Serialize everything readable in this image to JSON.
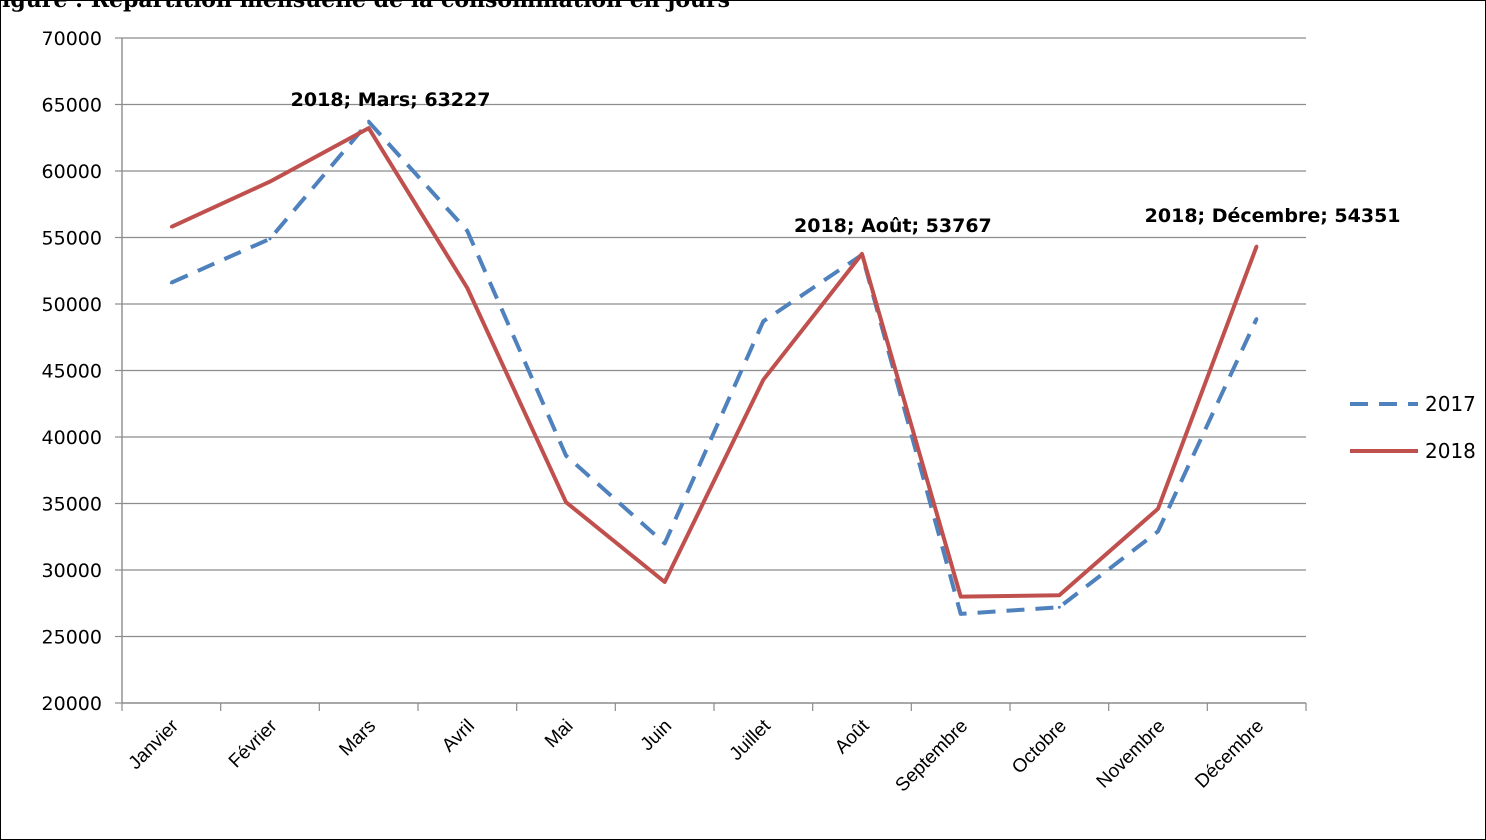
{
  "figure": {
    "cut_title": "igure : Répartition mensuelle de la consommation en jours"
  },
  "chart_data": {
    "type": "line",
    "categories": [
      "Janvier",
      "Février",
      "Mars",
      "Avril",
      "Mai",
      "Juin",
      "Juillet",
      "Août",
      "Septembre",
      "Octobre",
      "Novembre",
      "Décembre"
    ],
    "series": [
      {
        "name": "2017",
        "color": "#4F81BD",
        "dash": "dashed",
        "values": [
          51600,
          54900,
          63700,
          55500,
          38600,
          32000,
          48700,
          53700,
          26700,
          27200,
          32900,
          48900
        ]
      },
      {
        "name": "2018",
        "color": "#C0504D",
        "dash": "solid",
        "values": [
          55800,
          59200,
          63227,
          51200,
          35100,
          29100,
          44300,
          53767,
          28000,
          28100,
          34600,
          54351
        ]
      }
    ],
    "data_labels": [
      {
        "series": "2018",
        "category": "Mars",
        "text": "2018; Mars; 63227"
      },
      {
        "series": "2018",
        "category": "Août",
        "text": "2018; Août; 53767"
      },
      {
        "series": "2018",
        "category": "Décembre",
        "text": "2018; Décembre; 54351"
      }
    ],
    "y_ticks": [
      20000,
      25000,
      30000,
      35000,
      40000,
      45000,
      50000,
      55000,
      60000,
      65000,
      70000
    ],
    "ylim": [
      20000,
      70000
    ],
    "grid": "horizontal",
    "legend": "right"
  }
}
